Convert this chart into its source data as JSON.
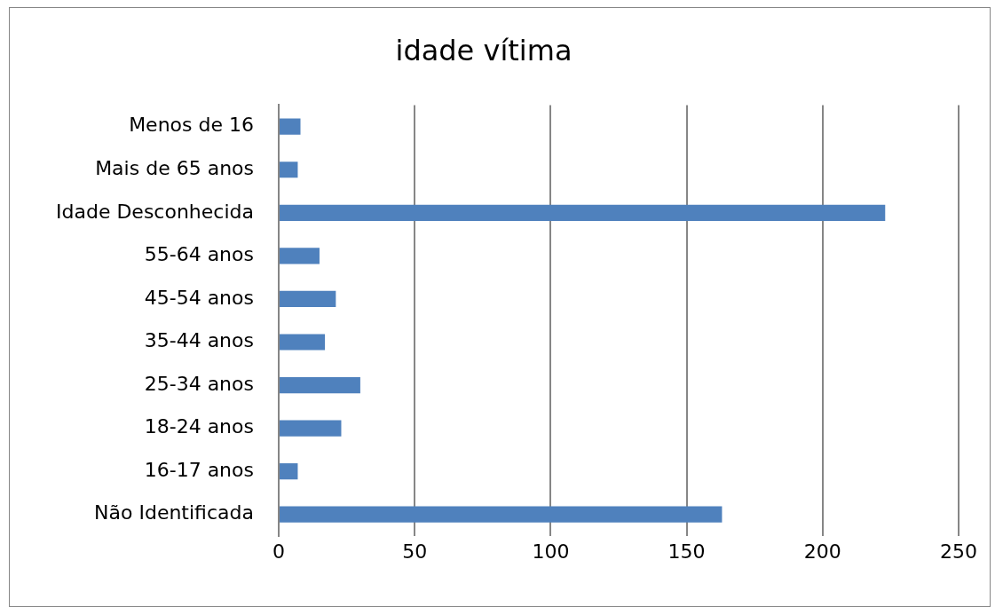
{
  "chart_data": {
    "type": "bar",
    "orientation": "horizontal",
    "title": "idade vítima",
    "categories": [
      "Menos de 16",
      "Mais de 65 anos",
      "Idade Desconhecida",
      "55-64 anos",
      "45-54 anos",
      "35-44 anos",
      "25-34 anos",
      "18-24 anos",
      "16-17 anos",
      "Não Identificada"
    ],
    "values": [
      8,
      7,
      223,
      15,
      21,
      17,
      30,
      23,
      7,
      163
    ],
    "color": "#4f81bd",
    "xlim": [
      0,
      250
    ],
    "xticks": [
      0,
      50,
      100,
      150,
      200,
      250
    ],
    "grid": "x",
    "legend": false
  }
}
